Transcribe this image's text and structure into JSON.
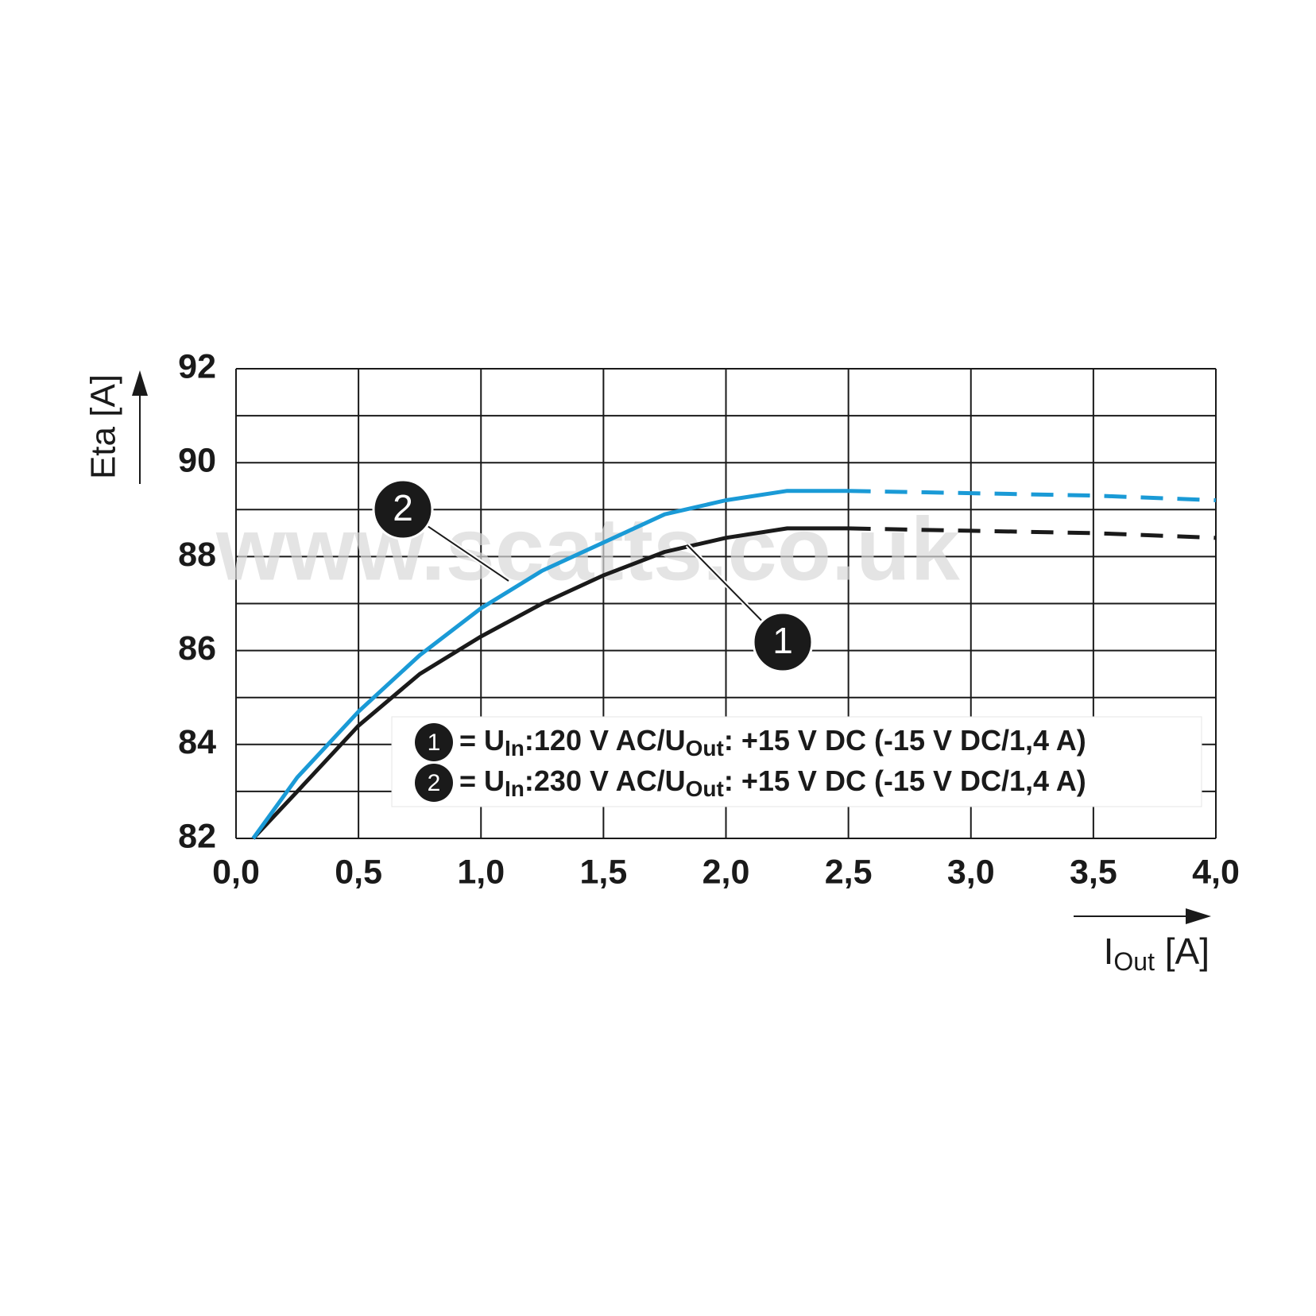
{
  "chart_data": {
    "type": "line",
    "y_label": "Eta [A]",
    "x_label_parts": [
      "I",
      "Out",
      " [A]"
    ],
    "watermark": "www.scatts.co.uk",
    "x": [
      0.07,
      0.25,
      0.5,
      0.75,
      1.0,
      1.25,
      1.5,
      1.75,
      2.0,
      2.25,
      2.5,
      3.0,
      3.5,
      4.0
    ],
    "dashed_from_x": 2.5,
    "series": [
      {
        "name": "1",
        "color": "#1a1a1a",
        "label_parts": [
          "= U",
          "In",
          ":120 V AC/U",
          "Out",
          ": +15 V DC (-15 V DC/1,4 A)"
        ],
        "values": [
          82,
          83,
          84.4,
          85.5,
          86.3,
          87.0,
          87.6,
          88.1,
          88.4,
          88.6,
          88.6,
          88.55,
          88.5,
          88.4
        ]
      },
      {
        "name": "2",
        "color": "#1a9ad6",
        "label_parts": [
          "= U",
          "In",
          ":230 V AC/U",
          "Out",
          ": +15 V DC (-15 V DC/1,4 A)"
        ],
        "values": [
          82,
          83.3,
          84.7,
          85.9,
          86.9,
          87.7,
          88.3,
          88.9,
          89.2,
          89.4,
          89.4,
          89.35,
          89.3,
          89.2
        ]
      }
    ],
    "xlim": [
      0,
      4
    ],
    "ylim": [
      82,
      92
    ],
    "xticks": [
      {
        "value": 0,
        "label": "0,0"
      },
      {
        "value": 0.5,
        "label": "0,5"
      },
      {
        "value": 1,
        "label": "1,0"
      },
      {
        "value": 1.5,
        "label": "1,5"
      },
      {
        "value": 2,
        "label": "2,0"
      },
      {
        "value": 2.5,
        "label": "2,5"
      },
      {
        "value": 3,
        "label": "3,0"
      },
      {
        "value": 3.5,
        "label": "3,5"
      },
      {
        "value": 4,
        "label": "4,0"
      }
    ],
    "yticks": [
      82,
      84,
      86,
      88,
      90,
      92
    ],
    "minor_yticks": [
      83,
      85,
      87,
      89,
      91
    ],
    "grid": true
  }
}
